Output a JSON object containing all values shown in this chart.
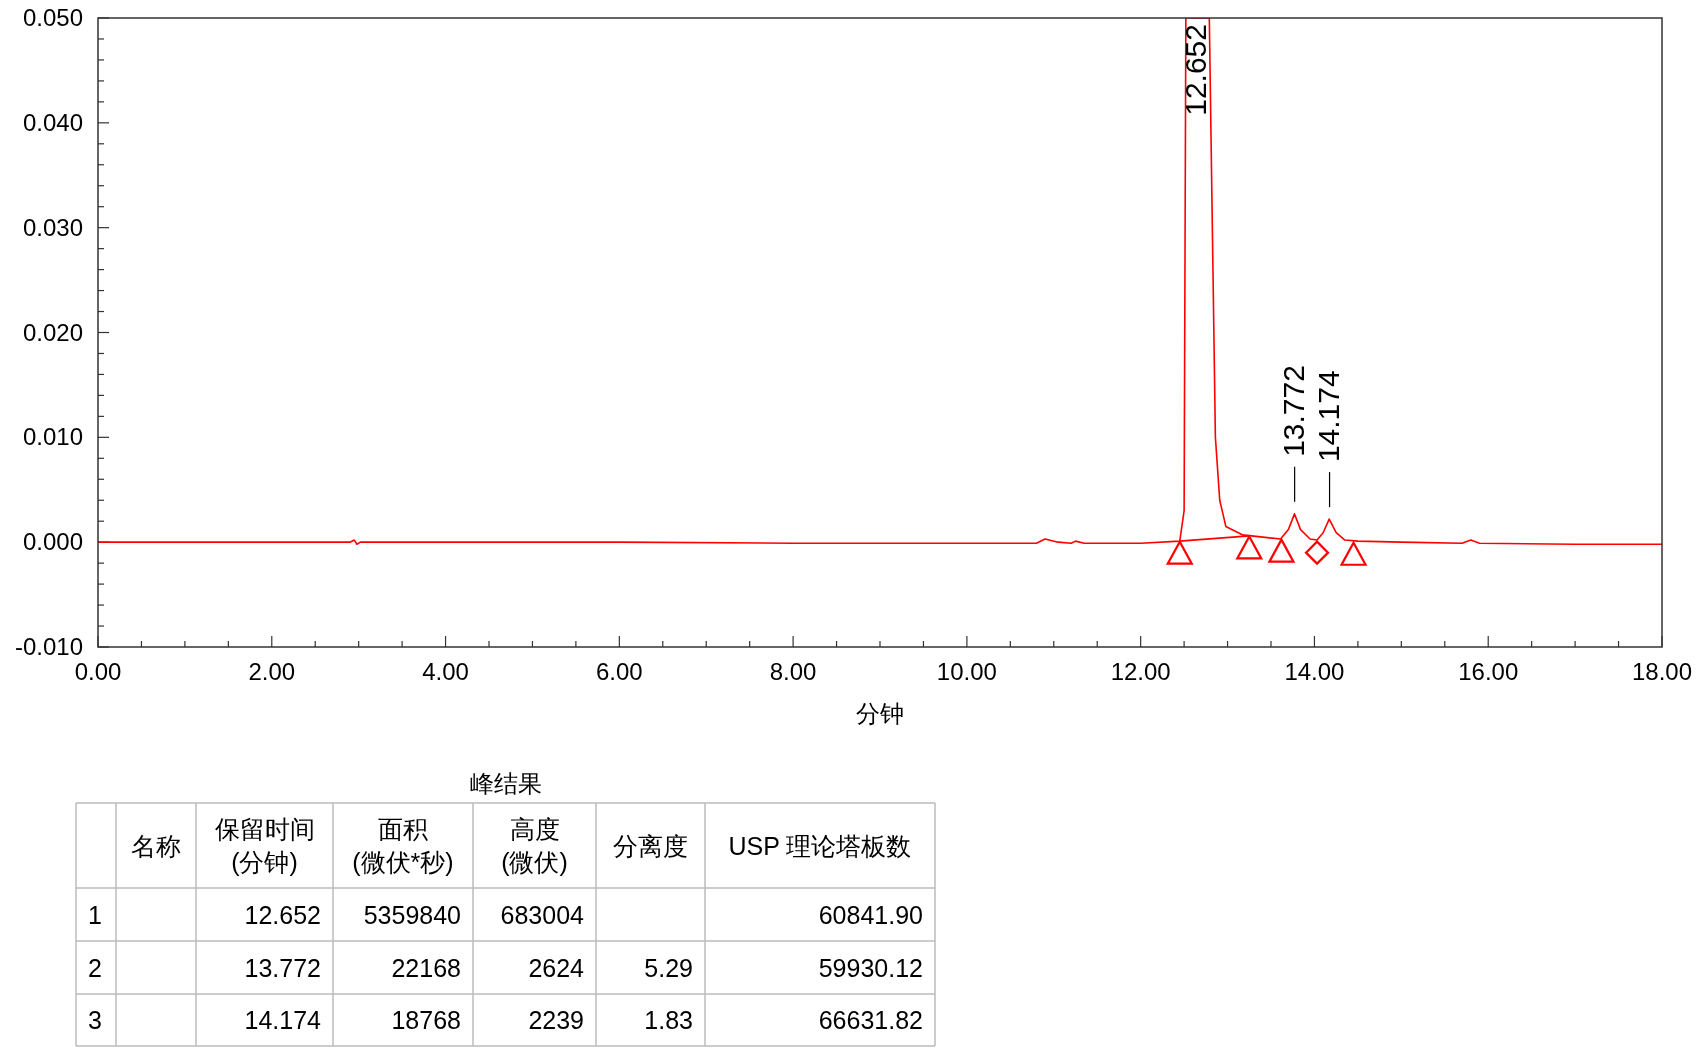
{
  "chart_data": [
    {
      "type": "line",
      "xlabel": "分钟",
      "xlim": [
        0,
        18
      ],
      "ylim": [
        -0.01,
        0.05
      ],
      "xticks": [
        {
          "value": 0,
          "label": "0.00"
        },
        {
          "value": 0.5,
          "label": null
        },
        {
          "value": 1,
          "label": null
        },
        {
          "value": 1.5,
          "label": null
        },
        {
          "value": 2,
          "label": "2.00"
        },
        {
          "value": 2.5,
          "label": null
        },
        {
          "value": 3,
          "label": null
        },
        {
          "value": 3.5,
          "label": null
        },
        {
          "value": 4,
          "label": "4.00"
        },
        {
          "value": 4.5,
          "label": null
        },
        {
          "value": 5,
          "label": null
        },
        {
          "value": 5.5,
          "label": null
        },
        {
          "value": 6,
          "label": "6.00"
        },
        {
          "value": 6.5,
          "label": null
        },
        {
          "value": 7,
          "label": null
        },
        {
          "value": 7.5,
          "label": null
        },
        {
          "value": 8,
          "label": "8.00"
        },
        {
          "value": 8.5,
          "label": null
        },
        {
          "value": 9,
          "label": null
        },
        {
          "value": 9.5,
          "label": null
        },
        {
          "value": 10,
          "label": "10.00"
        },
        {
          "value": 10.5,
          "label": null
        },
        {
          "value": 11,
          "label": null
        },
        {
          "value": 11.5,
          "label": null
        },
        {
          "value": 12,
          "label": "12.00"
        },
        {
          "value": 12.5,
          "label": null
        },
        {
          "value": 13,
          "label": null
        },
        {
          "value": 13.5,
          "label": null
        },
        {
          "value": 14,
          "label": "14.00"
        },
        {
          "value": 14.5,
          "label": null
        },
        {
          "value": 15,
          "label": null
        },
        {
          "value": 15.5,
          "label": null
        },
        {
          "value": 16,
          "label": "16.00"
        },
        {
          "value": 16.5,
          "label": null
        },
        {
          "value": 17,
          "label": null
        },
        {
          "value": 17.5,
          "label": null
        },
        {
          "value": 18,
          "label": "18.00"
        }
      ],
      "yticks": [
        {
          "value": -0.01,
          "label": "-0.010"
        },
        {
          "value": -0.008,
          "label": null
        },
        {
          "value": -0.006,
          "label": null
        },
        {
          "value": -0.004,
          "label": null
        },
        {
          "value": -0.002,
          "label": null
        },
        {
          "value": 0,
          "label": "0.000"
        },
        {
          "value": 0.002,
          "label": null
        },
        {
          "value": 0.004,
          "label": null
        },
        {
          "value": 0.006,
          "label": null
        },
        {
          "value": 0.008,
          "label": null
        },
        {
          "value": 0.01,
          "label": "0.010"
        },
        {
          "value": 0.012,
          "label": null
        },
        {
          "value": 0.014,
          "label": null
        },
        {
          "value": 0.016,
          "label": null
        },
        {
          "value": 0.018,
          "label": null
        },
        {
          "value": 0.02,
          "label": "0.020"
        },
        {
          "value": 0.022,
          "label": null
        },
        {
          "value": 0.024,
          "label": null
        },
        {
          "value": 0.026,
          "label": null
        },
        {
          "value": 0.028,
          "label": null
        },
        {
          "value": 0.03,
          "label": "0.030"
        },
        {
          "value": 0.032,
          "label": null
        },
        {
          "value": 0.034,
          "label": null
        },
        {
          "value": 0.036,
          "label": null
        },
        {
          "value": 0.038,
          "label": null
        },
        {
          "value": 0.04,
          "label": "0.040"
        },
        {
          "value": 0.042,
          "label": null
        },
        {
          "value": 0.044,
          "label": null
        },
        {
          "value": 0.046,
          "label": null
        },
        {
          "value": 0.048,
          "label": null
        },
        {
          "value": 0.05,
          "label": "0.050"
        }
      ],
      "series": [
        {
          "color": "#ff0000",
          "x": [
            0,
            1,
            2,
            2.9,
            2.95,
            2.98,
            3.02,
            3.5,
            4.5,
            6,
            8,
            9.5,
            10.5,
            10.8,
            10.9,
            11.05,
            11.2,
            11.25,
            11.35,
            12.0,
            12.45,
            12.5,
            12.52,
            12.79,
            12.86,
            12.91,
            12.98,
            13.17,
            13.61,
            13.7,
            13.77,
            13.84,
            13.95,
            14.03,
            14.1,
            14.17,
            14.25,
            14.35,
            14.5,
            15.0,
            15.7,
            15.8,
            15.9,
            17,
            18
          ],
          "values": [
            0,
            0,
            0,
            0,
            0.0002,
            -0.0002,
            0,
            0,
            0,
            0,
            -0.0001,
            -0.0001,
            -0.0001,
            -0.0001,
            0.0003,
            0,
            -0.0001,
            0.0001,
            -0.0001,
            -0.0001,
            0.0001,
            0.003,
            0.05,
            0.05,
            0.01,
            0.004,
            0.0015,
            0.0007,
            0.0003,
            0.0012,
            0.0027,
            0.0012,
            0.0003,
            0.0002,
            0.0009,
            0.0022,
            0.0009,
            0.0002,
            0.0001,
            0,
            -0.0001,
            0.0002,
            -0.0001,
            -0.0002,
            -0.0002
          ]
        },
        {
          "color": "#ff0000",
          "x": [
            12.45,
            13.25
          ],
          "values": [
            0.0001,
            0.0006
          ]
        },
        {
          "type": "scatter",
          "marker": "triangle",
          "color": "#ff0000",
          "x": [
            12.45,
            13.25,
            13.62,
            14.45
          ],
          "values": [
            -0.0011,
            -0.0006,
            -0.0009,
            -0.0012
          ]
        },
        {
          "type": "scatter",
          "marker": "diamond",
          "color": "#ff0000",
          "x": [
            14.03
          ],
          "values": [
            -0.001
          ]
        }
      ],
      "annotations": [
        {
          "text": "12.652",
          "x": 12.652,
          "y": 0.05
        },
        {
          "text": "13.772",
          "x": 13.772,
          "y": 0.0027
        },
        {
          "text": "14.174",
          "x": 14.174,
          "y": 0.0022
        }
      ],
      "grid": false
    },
    {
      "type": "other",
      "title": "峰结果",
      "annotations": [
        null,
        "名称",
        "保留时间\n(分钟)",
        "面积\n(微伏*秒)",
        "高度\n(微伏)",
        "分离度",
        "USP 理论塔板数",
        "1",
        null,
        "12.652",
        "5359840",
        "683004",
        null,
        "60841.90",
        "2",
        null,
        "13.772",
        "22168",
        "2624",
        "5.29",
        "59930.12",
        "3",
        null,
        "14.174",
        "18768",
        "2239",
        "1.83",
        "66631.82"
      ]
    }
  ]
}
